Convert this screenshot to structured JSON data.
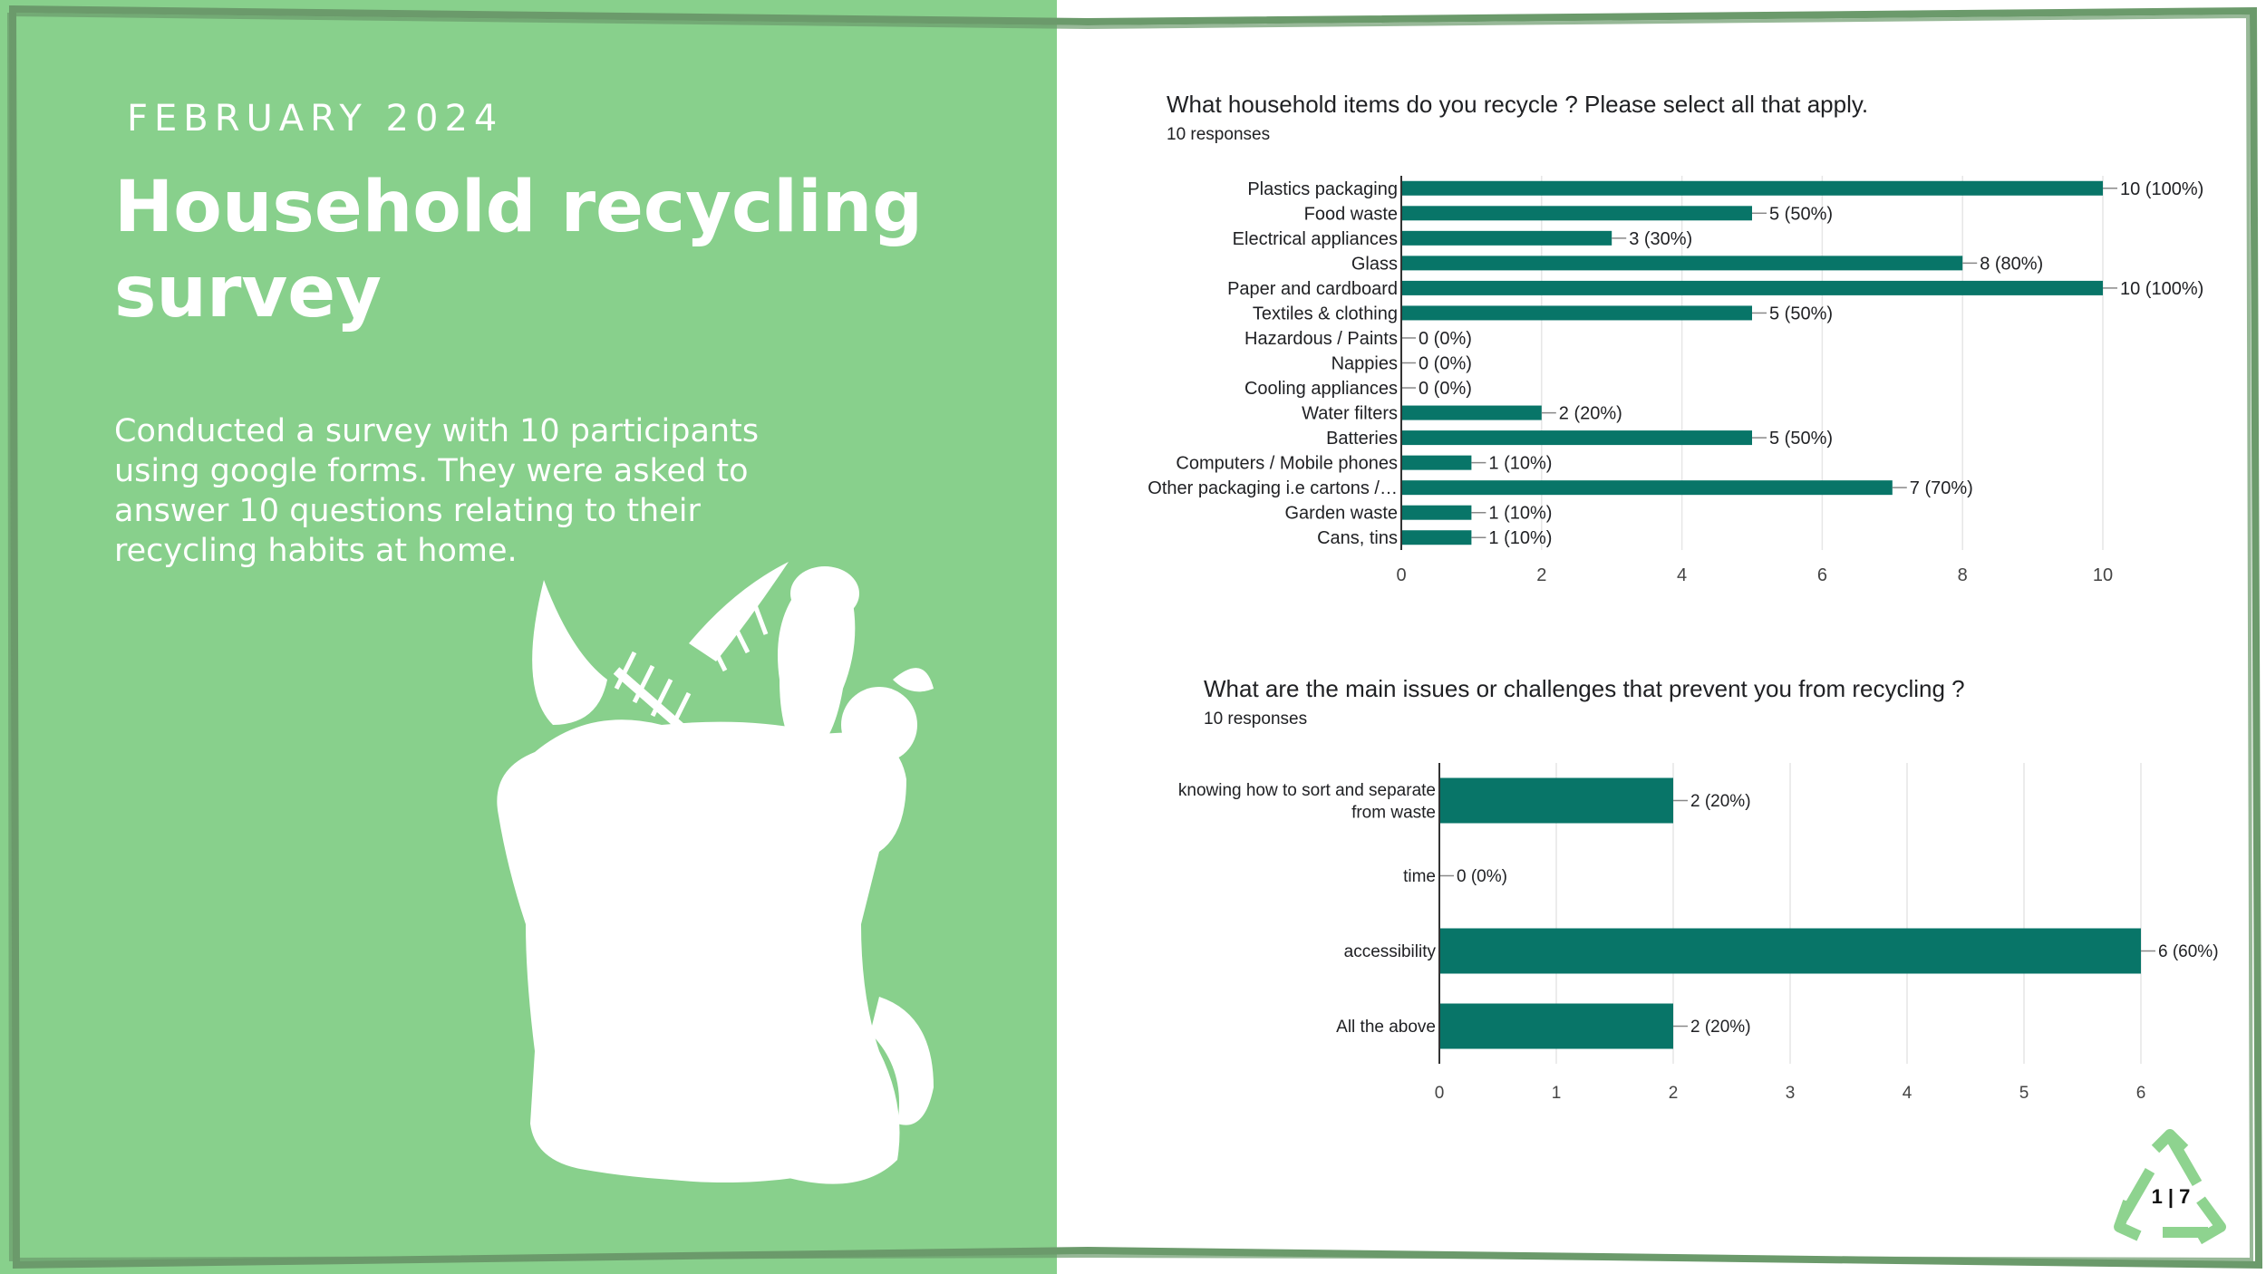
{
  "slide": {
    "date": "FEBRUARY 2024",
    "title": "Household recycling survey",
    "description": "Conducted a survey with 10 participants using google forms. They were asked to answer 10 questions relating to their recycling habits at home.",
    "page_number": "1 | 7",
    "illustration": "recycling-bag-icon",
    "corner_icon": "recycle-icon"
  },
  "colors": {
    "left_panel": "#88d08c",
    "frame": "#6b9a6b",
    "bar": "#087568",
    "text": "#202124"
  },
  "chart_data": [
    {
      "type": "bar",
      "orientation": "horizontal",
      "title": "What household items do you recycle ? Please select all that apply.",
      "subtitle": "10 responses",
      "categories": [
        "Plastics packaging",
        "Food waste",
        "Electrical appliances",
        "Glass",
        "Paper and cardboard",
        "Textiles & clothing",
        "Hazardous / Paints",
        "Nappies",
        "Cooling appliances",
        "Water filters",
        "Batteries",
        "Computers / Mobile phones",
        "Other packaging i.e cartons /…",
        "Garden waste",
        "Cans, tins"
      ],
      "values": [
        10,
        5,
        3,
        8,
        10,
        5,
        0,
        0,
        0,
        2,
        5,
        1,
        7,
        1,
        1
      ],
      "data_labels": [
        "10 (100%)",
        "5 (50%)",
        "3 (30%)",
        "8 (80%)",
        "10 (100%)",
        "5 (50%)",
        "0 (0%)",
        "0 (0%)",
        "0 (0%)",
        "2 (20%)",
        "5 (50%)",
        "1 (10%)",
        "7 (70%)",
        "1 (10%)",
        "1 (10%)"
      ],
      "xlim": [
        0,
        10
      ],
      "xticks": [
        "0",
        "2",
        "4",
        "6",
        "8",
        "10"
      ],
      "grid": true
    },
    {
      "type": "bar",
      "orientation": "horizontal",
      "title": "What are the main issues or challenges that prevent you from recycling ?",
      "subtitle": "10 responses",
      "categories": [
        [
          "knowing how to sort and separate",
          "from waste"
        ],
        [
          "time"
        ],
        [
          "accessibility"
        ],
        [
          "All the above"
        ]
      ],
      "values": [
        2,
        0,
        6,
        2
      ],
      "data_labels": [
        "2 (20%)",
        "0 (0%)",
        "6 (60%)",
        "2 (20%)"
      ],
      "xlim": [
        0,
        6
      ],
      "xticks": [
        "0",
        "1",
        "2",
        "3",
        "4",
        "5",
        "6"
      ],
      "grid": true
    }
  ]
}
